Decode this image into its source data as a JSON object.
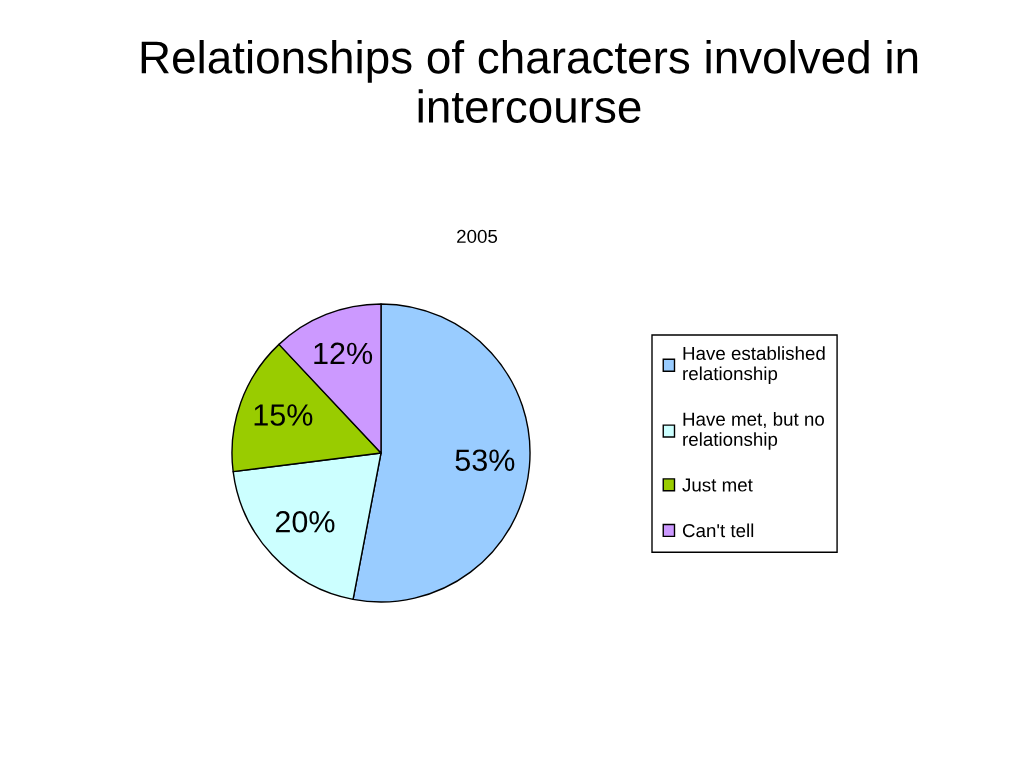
{
  "chart_data": {
    "type": "pie",
    "title": "Relationships of characters involved in intercourse",
    "subtitle": "2005",
    "categories": [
      "Have established relationship",
      "Have met, but no relationship",
      "Just met",
      "Can't tell"
    ],
    "values": [
      53,
      20,
      15,
      12
    ],
    "colors": [
      "#99ccff",
      "#ccffff",
      "#99cc00",
      "#cc99ff"
    ],
    "value_labels": [
      "53%",
      "20%",
      "15%",
      "12%"
    ],
    "legend": "right"
  }
}
